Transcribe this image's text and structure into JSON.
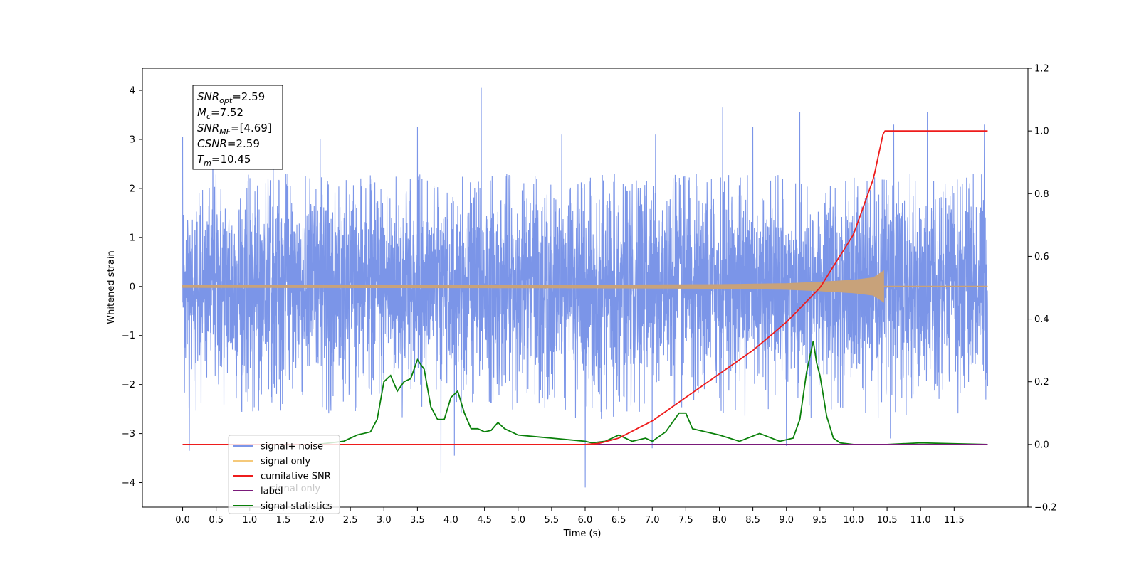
{
  "chart_data": {
    "type": "line",
    "title": "",
    "xlabel": "Time (s)",
    "ylabel": "Whitened strain",
    "xlim": [
      -0.6,
      12.6
    ],
    "ylim": [
      -4.5,
      4.45
    ],
    "y2lim": [
      -0.2,
      1.2
    ],
    "x_ticks": [
      "0.0",
      "0.5",
      "1.0",
      "1.5",
      "2.0",
      "2.5",
      "3.0",
      "3.5",
      "4.0",
      "4.5",
      "5.0",
      "5.5",
      "6.0",
      "6.5",
      "7.0",
      "7.5",
      "8.0",
      "8.5",
      "9.0",
      "9.5",
      "10.0",
      "10.5",
      "11.0",
      "11.5"
    ],
    "y_ticks": [
      "−4",
      "−3",
      "−2",
      "−1",
      "0",
      "1",
      "2",
      "3",
      "4"
    ],
    "y2_ticks": [
      "−0.2",
      "0.0",
      "0.2",
      "0.4",
      "0.6",
      "0.8",
      "1.0",
      "1.2"
    ],
    "grid": false,
    "legend_position": "bottom-left",
    "legend": [
      "signal+ noise",
      "signal only",
      "cumilative SNR",
      "label",
      "signal statistics"
    ],
    "ghost_legend_text": "signal only",
    "info_box": [
      {
        "base": "SNR",
        "sub": "opt",
        "value": "=2.59"
      },
      {
        "base": "M",
        "sub": "c",
        "value": "=7.52"
      },
      {
        "base": "SNR",
        "sub": "MF",
        "value": "=[4.69]"
      },
      {
        "base": "CSNR",
        "sub": "",
        "value": "=2.59"
      },
      {
        "base": "T",
        "sub": "m",
        "value": "=10.45"
      }
    ],
    "colors": {
      "noise": "#7b95e8",
      "signal": "#c8a27a",
      "cumulative_snr": "#ee1c1c",
      "label": "#7a1a7a",
      "statistics": "#0a800a",
      "legend_signal_only": "#f5c97a"
    },
    "series": [
      {
        "name": "signal+ noise",
        "axis": "left",
        "x_range": [
          0,
          12.0
        ],
        "envelope_max": 2.3,
        "spikes": [
          [
            0.0,
            3.05
          ],
          [
            0.45,
            2.95
          ],
          [
            1.35,
            2.85
          ],
          [
            2.05,
            3.0
          ],
          [
            3.5,
            3.25
          ],
          [
            4.45,
            4.05
          ],
          [
            5.65,
            3.1
          ],
          [
            7.05,
            3.1
          ],
          [
            8.05,
            3.65
          ],
          [
            8.5,
            3.25
          ],
          [
            9.2,
            3.55
          ],
          [
            10.6,
            3.3
          ],
          [
            11.1,
            3.55
          ],
          [
            11.95,
            3.3
          ],
          [
            0.1,
            -3.35
          ],
          [
            3.85,
            -3.8
          ],
          [
            4.05,
            -3.45
          ],
          [
            6.0,
            -4.1
          ],
          [
            7.0,
            -3.3
          ],
          [
            9.0,
            -3.25
          ],
          [
            10.55,
            -3.1
          ]
        ]
      },
      {
        "name": "signal only",
        "axis": "left",
        "x": [
          0.0,
          6.0,
          8.0,
          9.0,
          9.5,
          10.0,
          10.3,
          10.45,
          10.46,
          12.0
        ],
        "amplitude": [
          0.02,
          0.03,
          0.04,
          0.06,
          0.09,
          0.13,
          0.18,
          0.32,
          0.0,
          0.0
        ]
      },
      {
        "name": "cumilative SNR",
        "axis": "right",
        "x": [
          0.0,
          6.0,
          6.2,
          6.5,
          7.0,
          7.5,
          8.0,
          8.5,
          9.0,
          9.5,
          10.0,
          10.3,
          10.45,
          12.0
        ],
        "y": [
          0.0,
          0.0,
          0.003,
          0.02,
          0.075,
          0.15,
          0.225,
          0.3,
          0.39,
          0.5,
          0.67,
          0.85,
          1.0,
          1.0
        ]
      },
      {
        "name": "label",
        "axis": "right",
        "x": [
          0.0,
          12.0
        ],
        "y": [
          0.0,
          0.0
        ]
      },
      {
        "name": "signal statistics",
        "axis": "right",
        "x": [
          0.0,
          2.0,
          2.2,
          2.4,
          2.6,
          2.8,
          2.9,
          3.0,
          3.1,
          3.2,
          3.3,
          3.4,
          3.5,
          3.6,
          3.7,
          3.8,
          3.9,
          4.0,
          4.1,
          4.2,
          4.3,
          4.4,
          4.5,
          4.6,
          4.7,
          4.8,
          4.9,
          5.0,
          5.5,
          6.0,
          6.1,
          6.3,
          6.5,
          6.7,
          6.9,
          7.0,
          7.2,
          7.4,
          7.5,
          7.6,
          7.8,
          8.0,
          8.3,
          8.6,
          8.9,
          9.1,
          9.2,
          9.3,
          9.4,
          9.45,
          9.5,
          9.6,
          9.7,
          9.8,
          10.0,
          10.5,
          11.0,
          12.0
        ],
        "y": [
          0.0,
          0.0,
          0.005,
          0.01,
          0.03,
          0.04,
          0.08,
          0.2,
          0.22,
          0.17,
          0.2,
          0.21,
          0.27,
          0.24,
          0.12,
          0.08,
          0.08,
          0.15,
          0.17,
          0.1,
          0.05,
          0.05,
          0.04,
          0.045,
          0.07,
          0.05,
          0.04,
          0.03,
          0.02,
          0.01,
          0.005,
          0.01,
          0.03,
          0.01,
          0.02,
          0.01,
          0.04,
          0.1,
          0.1,
          0.05,
          0.04,
          0.03,
          0.01,
          0.035,
          0.01,
          0.02,
          0.08,
          0.23,
          0.33,
          0.26,
          0.22,
          0.09,
          0.02,
          0.005,
          0.0,
          0.0,
          0.005,
          0.0
        ]
      }
    ]
  }
}
